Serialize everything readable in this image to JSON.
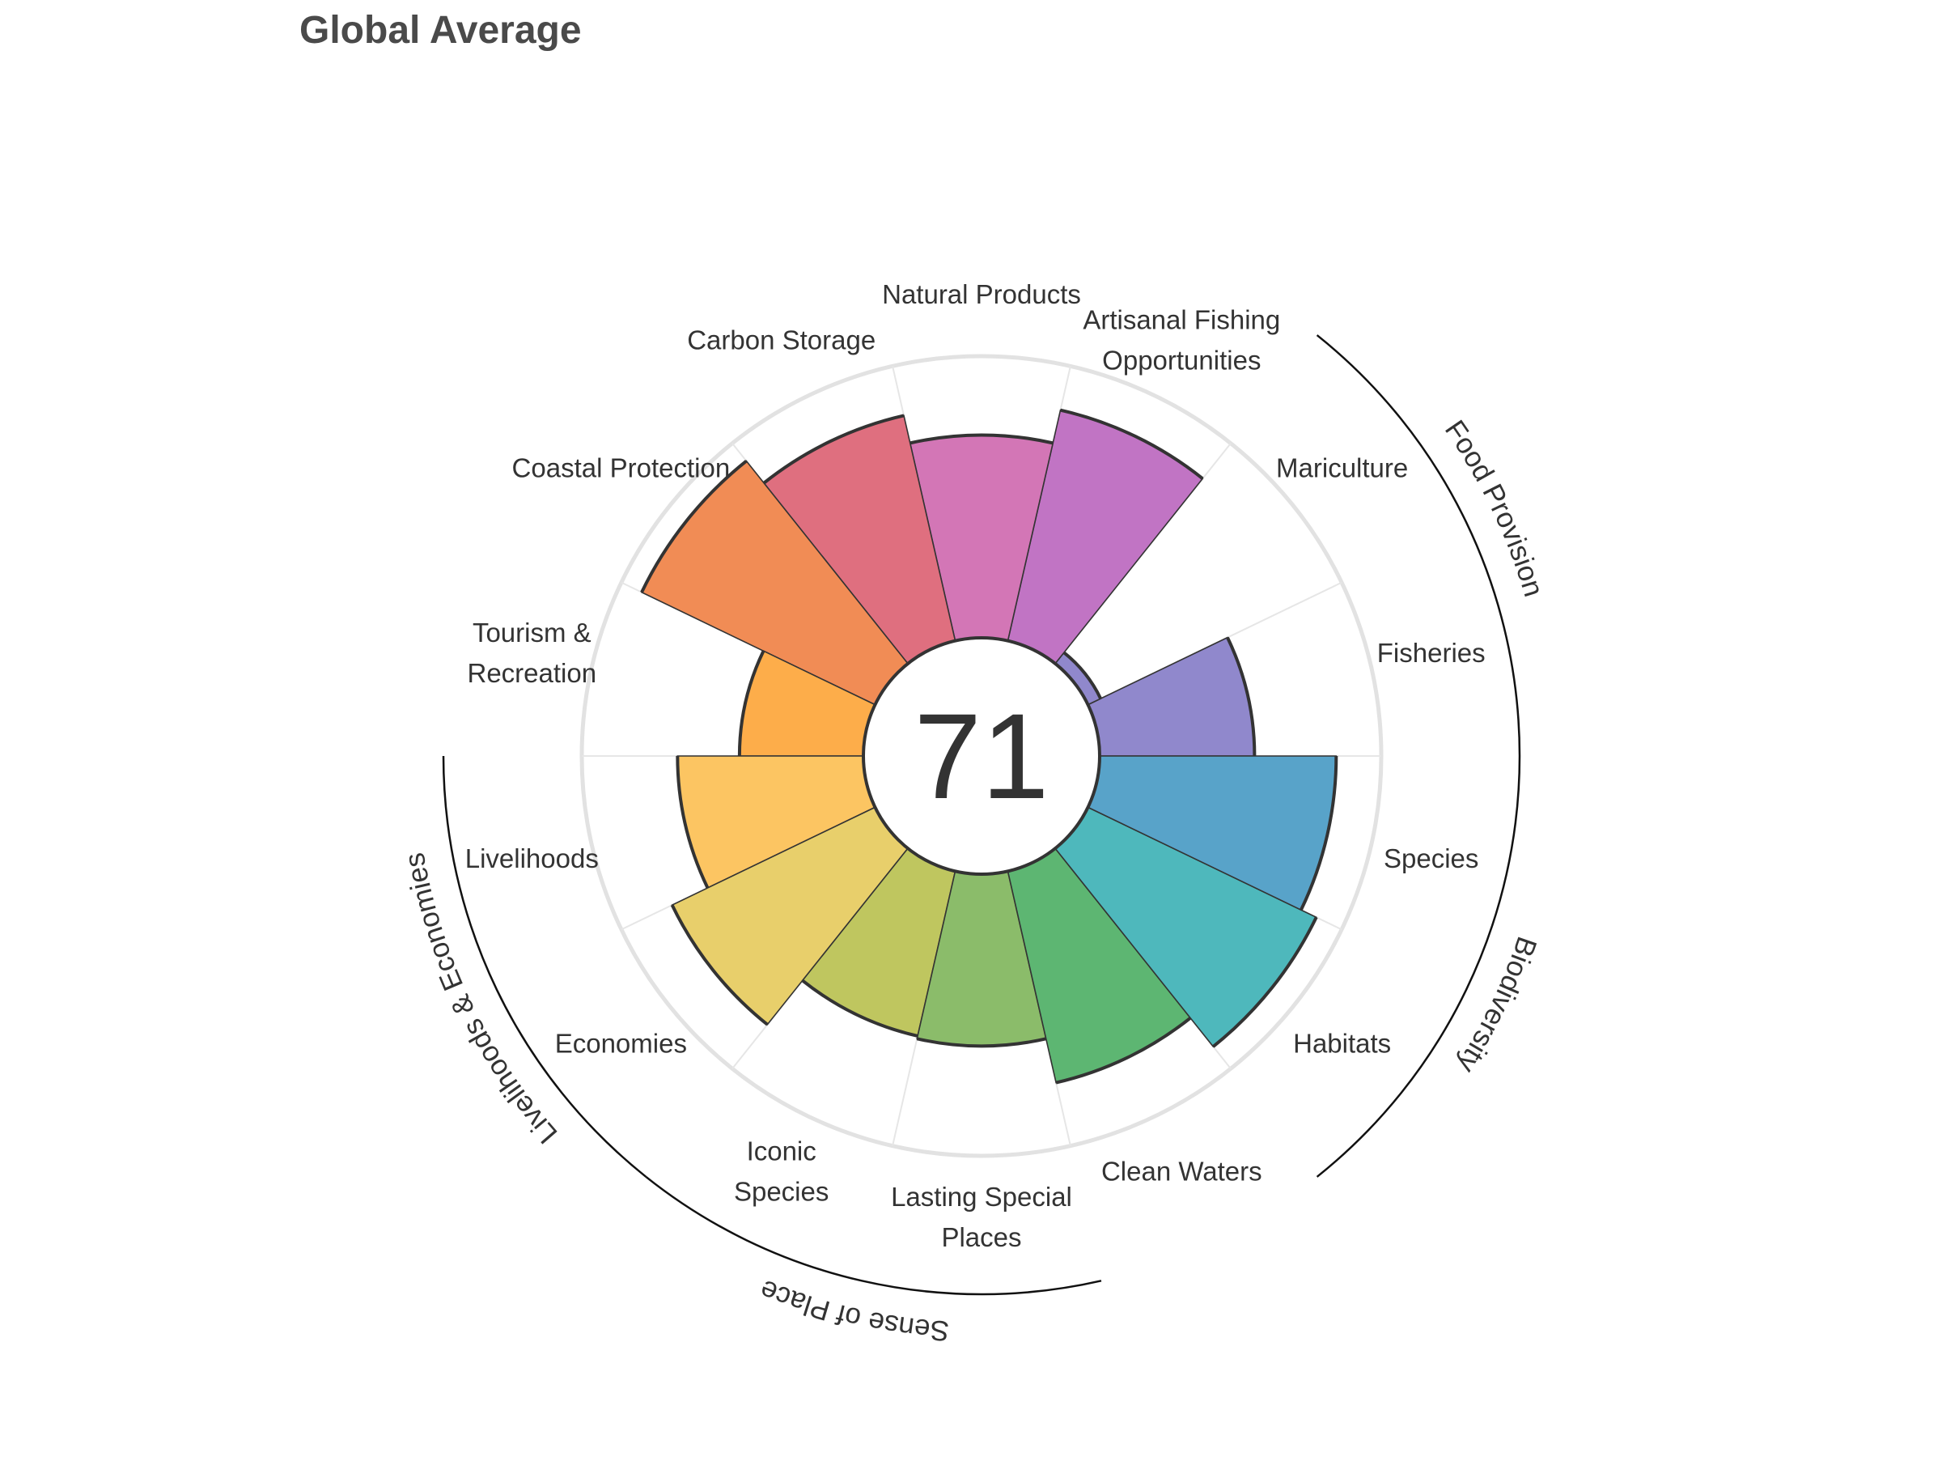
{
  "chart_data": {
    "type": "polar-bar",
    "title": "Global Average",
    "center_score": "71",
    "rlim": [
      0,
      100
    ],
    "goals": [
      {
        "label": "Fisheries",
        "value": 55,
        "color": "#9088cc"
      },
      {
        "label": "Mariculture",
        "value": 5,
        "color": "#9088cc"
      },
      {
        "label": "Artisanal Fishing Opportunities",
        "label_lines": [
          "Artisanal Fishing",
          "Opportunities"
        ],
        "value": 84,
        "color": "#c174c4"
      },
      {
        "label": "Natural Products",
        "value": 72,
        "color": "#d376b6"
      },
      {
        "label": "Carbon Storage",
        "value": 82,
        "color": "#df6f7f"
      },
      {
        "label": "Coastal Protection",
        "value": 92,
        "color": "#f18c55"
      },
      {
        "label": "Tourism & Recreation",
        "label_lines": [
          "Tourism &",
          "Recreation"
        ],
        "value": 44,
        "color": "#fdad4a"
      },
      {
        "label": "Livelihoods",
        "value": 66,
        "color": "#fcc562"
      },
      {
        "label": "Economies",
        "value": 80,
        "color": "#e8cf6b"
      },
      {
        "label": "Iconic Species",
        "label_lines": [
          "Iconic",
          "Species"
        ],
        "value": 60,
        "color": "#bfc65f"
      },
      {
        "label": "Lasting Special Places",
        "label_lines": [
          "Lasting Special",
          "Places"
        ],
        "value": 61,
        "color": "#8bbc6a"
      },
      {
        "label": "Clean Waters",
        "value": 77,
        "color": "#5db672"
      },
      {
        "label": "Habitats",
        "value": 90,
        "color": "#4eb8bc"
      },
      {
        "label": "Species",
        "value": 84,
        "color": "#58a3c9"
      }
    ],
    "groups": [
      {
        "label": "Food Provision",
        "start": 0,
        "end": 2
      },
      {
        "label": "Biodiversity",
        "start": 12,
        "end": 14
      },
      {
        "label": "Sense of Place",
        "start": 9,
        "end": 11
      },
      {
        "label": "Livelihoods & Economies",
        "start": 7,
        "end": 9
      }
    ]
  }
}
